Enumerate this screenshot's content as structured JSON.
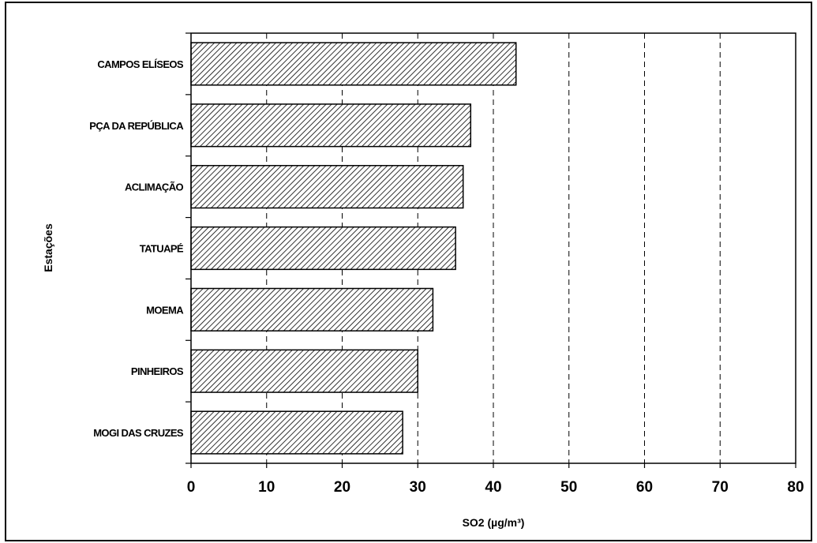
{
  "chart_data": {
    "type": "bar",
    "orientation": "horizontal",
    "categories": [
      "CAMPOS ELÍSEOS",
      "PÇA DA REPÚBLICA",
      "ACLIMAÇÃO",
      "TATUAPÉ",
      "MOEMA",
      "PINHEIROS",
      "MOGI DAS CRUZES"
    ],
    "values": [
      43,
      37,
      36,
      35,
      32,
      30,
      28
    ],
    "xlabel": "SO2 (µg/m³)",
    "ylabel": "Estações",
    "xlim": [
      0,
      80
    ],
    "xticks": [
      0,
      10,
      20,
      30,
      40,
      50,
      60,
      70,
      80
    ],
    "grid": "vertical dashed",
    "bar_fill": "diagonal hatch",
    "colors": {
      "bar_stroke": "#000000",
      "hatch": "#000000",
      "background": "#ffffff"
    }
  }
}
